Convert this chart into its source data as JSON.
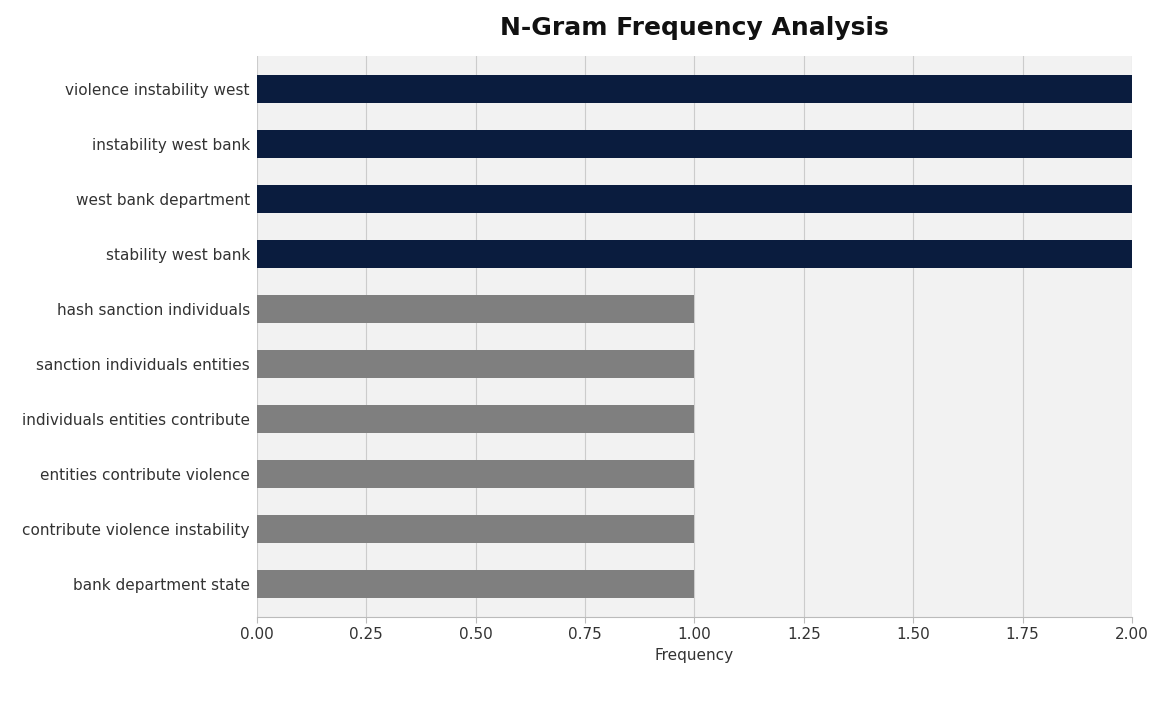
{
  "title": "N-Gram Frequency Analysis",
  "categories": [
    "bank department state",
    "contribute violence instability",
    "entities contribute violence",
    "individuals entities contribute",
    "sanction individuals entities",
    "hash sanction individuals",
    "stability west bank",
    "west bank department",
    "instability west bank",
    "violence instability west"
  ],
  "values": [
    1,
    1,
    1,
    1,
    1,
    1,
    2,
    2,
    2,
    2
  ],
  "colors": [
    "#7f7f7f",
    "#7f7f7f",
    "#7f7f7f",
    "#7f7f7f",
    "#7f7f7f",
    "#7f7f7f",
    "#0a1c3e",
    "#0a1c3e",
    "#0a1c3e",
    "#0a1c3e"
  ],
  "xlabel": "Frequency",
  "xlim": [
    0,
    2.0
  ],
  "xticks": [
    0.0,
    0.25,
    0.5,
    0.75,
    1.0,
    1.25,
    1.5,
    1.75,
    2.0
  ],
  "plot_bg_color": "#f2f2f2",
  "fig_bg_color": "#ffffff",
  "title_fontsize": 18,
  "label_fontsize": 11,
  "tick_fontsize": 11,
  "bar_height": 0.5
}
